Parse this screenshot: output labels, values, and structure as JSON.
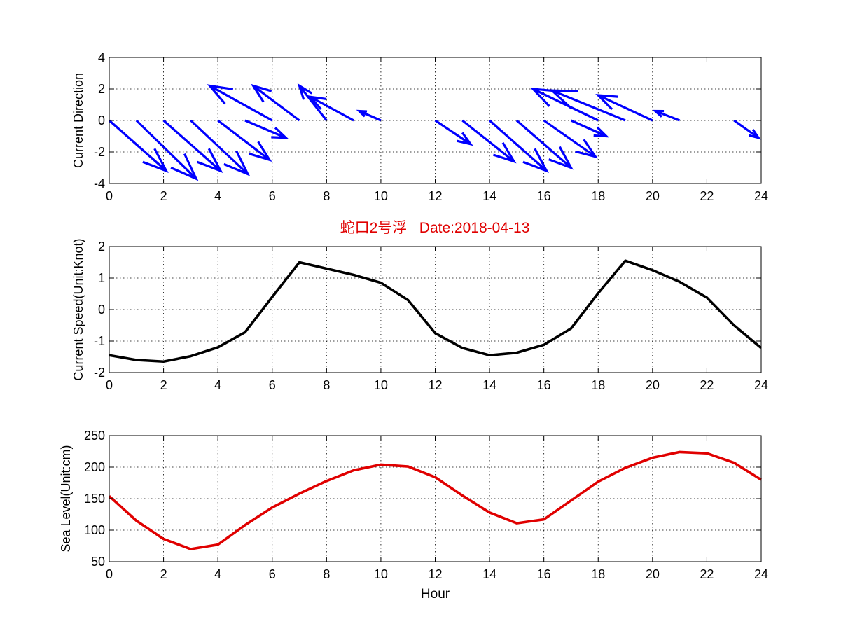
{
  "figure_title": "蛇口2号浮   Date:2018-04-13",
  "colors": {
    "direction": "#0000ff",
    "speed": "#000000",
    "sea_level": "#e00000",
    "title": "#e00000",
    "grid": "#000000"
  },
  "chart_data": [
    {
      "type": "quiver",
      "ylabel": "Current Direction",
      "xlabel": "",
      "xlim": [
        0,
        24
      ],
      "ylim": [
        -4,
        4
      ],
      "xticks": [
        0,
        2,
        4,
        6,
        8,
        10,
        12,
        14,
        16,
        18,
        20,
        22,
        24
      ],
      "yticks": [
        -4,
        -2,
        0,
        2,
        4
      ],
      "grid": true,
      "vectors": [
        {
          "x": 0,
          "y": 0,
          "u": 2.1,
          "v": -3.2
        },
        {
          "x": 1,
          "y": 0,
          "u": 2.2,
          "v": -3.7
        },
        {
          "x": 2,
          "y": 0,
          "u": 2.1,
          "v": -3.2
        },
        {
          "x": 3,
          "y": 0,
          "u": 2.1,
          "v": -3.4
        },
        {
          "x": 4,
          "y": 0,
          "u": 1.9,
          "v": -2.5
        },
        {
          "x": 5,
          "y": 0,
          "u": 1.5,
          "v": -1.1
        },
        {
          "x": 6,
          "y": 0,
          "u": -2.3,
          "v": 2.2
        },
        {
          "x": 7,
          "y": 0,
          "u": -1.7,
          "v": 2.2
        },
        {
          "x": 8,
          "y": 0,
          "u": -1.0,
          "v": 2.2
        },
        {
          "x": 9,
          "y": 0,
          "u": -1.6,
          "v": 1.5
        },
        {
          "x": 10,
          "y": 0,
          "u": -0.8,
          "v": 0.6
        },
        {
          "x": 12,
          "y": 0,
          "u": 1.3,
          "v": -1.5
        },
        {
          "x": 13,
          "y": 0,
          "u": 1.9,
          "v": -2.6
        },
        {
          "x": 14,
          "y": 0,
          "u": 2.1,
          "v": -3.2
        },
        {
          "x": 15,
          "y": 0,
          "u": 2.0,
          "v": -3.0
        },
        {
          "x": 16,
          "y": 0,
          "u": 1.9,
          "v": -2.3
        },
        {
          "x": 17,
          "y": 0,
          "u": 1.3,
          "v": -1.0
        },
        {
          "x": 18,
          "y": 0,
          "u": -2.4,
          "v": 2.0
        },
        {
          "x": 19,
          "y": 0,
          "u": -2.7,
          "v": 1.9
        },
        {
          "x": 20,
          "y": 0,
          "u": -2.0,
          "v": 1.6
        },
        {
          "x": 21,
          "y": 0,
          "u": -0.9,
          "v": 0.6
        },
        {
          "x": 23,
          "y": 0,
          "u": 0.9,
          "v": -1.1
        }
      ]
    },
    {
      "type": "line",
      "ylabel": "Current Speed(Unit:Knot)",
      "xlabel": "",
      "xlim": [
        0,
        24
      ],
      "ylim": [
        -2,
        2
      ],
      "xticks": [
        0,
        2,
        4,
        6,
        8,
        10,
        12,
        14,
        16,
        18,
        20,
        22,
        24
      ],
      "yticks": [
        -2,
        -1,
        0,
        1,
        2
      ],
      "grid": true,
      "series": [
        {
          "x": [
            0,
            1,
            2,
            3,
            4,
            5,
            6,
            7,
            8,
            9,
            10,
            11,
            12,
            13,
            14,
            15,
            16,
            17,
            18,
            19,
            20,
            21,
            22,
            23,
            24
          ],
          "values": [
            -1.45,
            -1.6,
            -1.65,
            -1.48,
            -1.2,
            -0.72,
            0.4,
            1.5,
            1.3,
            1.1,
            0.85,
            0.3,
            -0.75,
            -1.22,
            -1.45,
            -1.37,
            -1.12,
            -0.6,
            0.52,
            1.55,
            1.25,
            0.88,
            0.38,
            -0.5,
            -1.22
          ]
        }
      ]
    },
    {
      "type": "line",
      "ylabel": "Sea Level(Unit:cm)",
      "xlabel": "Hour",
      "xlim": [
        0,
        24
      ],
      "ylim": [
        50,
        250
      ],
      "xticks": [
        0,
        2,
        4,
        6,
        8,
        10,
        12,
        14,
        16,
        18,
        20,
        22,
        24
      ],
      "yticks": [
        50,
        100,
        150,
        200,
        250
      ],
      "grid": true,
      "series": [
        {
          "x": [
            0,
            1,
            2,
            3,
            4,
            5,
            6,
            7,
            8,
            9,
            10,
            11,
            12,
            13,
            14,
            15,
            16,
            17,
            18,
            19,
            20,
            21,
            22,
            23,
            24
          ],
          "values": [
            154,
            115,
            86,
            70,
            77,
            108,
            136,
            158,
            178,
            195,
            204,
            201,
            184,
            155,
            128,
            111,
            117,
            147,
            177,
            199,
            215,
            224,
            222,
            207,
            180
          ]
        }
      ]
    }
  ]
}
